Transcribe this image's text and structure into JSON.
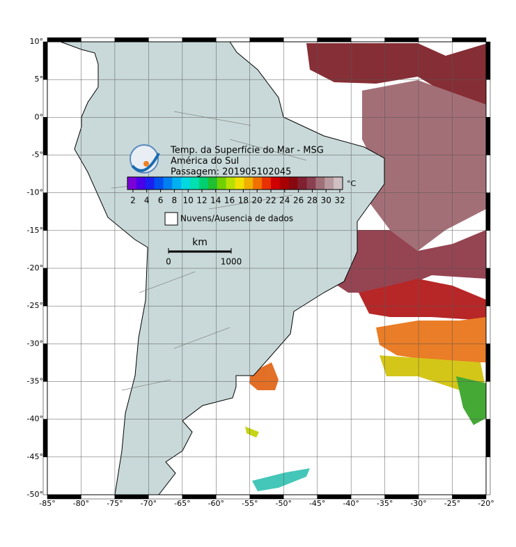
{
  "map": {
    "xlim": [
      -85,
      -20
    ],
    "ylim": [
      -50,
      10
    ],
    "grid": true,
    "xticks": [
      {
        "value": -85,
        "label": "-85°"
      },
      {
        "value": -80,
        "label": "-80°"
      },
      {
        "value": -75,
        "label": "-75°"
      },
      {
        "value": -70,
        "label": "-70°"
      },
      {
        "value": -65,
        "label": "-65°"
      },
      {
        "value": -60,
        "label": "-60°"
      },
      {
        "value": -55,
        "label": "-55°"
      },
      {
        "value": -50,
        "label": "-50°"
      },
      {
        "value": -45,
        "label": "-45°"
      },
      {
        "value": -40,
        "label": "-40°"
      },
      {
        "value": -35,
        "label": "-35°"
      },
      {
        "value": -30,
        "label": "-30°"
      },
      {
        "value": -25,
        "label": "-25°"
      },
      {
        "value": -20,
        "label": "-20°"
      }
    ],
    "yticks": [
      {
        "value": 10,
        "label": "10°"
      },
      {
        "value": 5,
        "label": "5°"
      },
      {
        "value": 0,
        "label": "0°"
      },
      {
        "value": -5,
        "label": "-5°"
      },
      {
        "value": -10,
        "label": "-10°"
      },
      {
        "value": -15,
        "label": "-15°"
      },
      {
        "value": -20,
        "label": "-20°"
      },
      {
        "value": -25,
        "label": "-25°"
      },
      {
        "value": -30,
        "label": "-30°"
      },
      {
        "value": -35,
        "label": "-35°"
      },
      {
        "value": -40,
        "label": "-40°"
      },
      {
        "value": -45,
        "label": "-45°"
      },
      {
        "value": -50,
        "label": "-50°"
      }
    ]
  },
  "legend": {
    "title_lines": [
      "Temp. da Superfície do Mar - MSG",
      "América do Sul",
      "Passagem: 201905102045"
    ],
    "colorbar": {
      "lim": [
        1.2,
        32.4
      ],
      "ticks": [
        2,
        4,
        6,
        8,
        10,
        12,
        14,
        16,
        18,
        20,
        22,
        24,
        26,
        28,
        30,
        32
      ],
      "unit": "°C",
      "colors": [
        "#7a00d8",
        "#4a00e8",
        "#1a20f0",
        "#0050f0",
        "#0080f0",
        "#00b0f0",
        "#00d8e0",
        "#00e0b0",
        "#00d070",
        "#20c030",
        "#70d000",
        "#b8e000",
        "#f0e000",
        "#f0b000",
        "#f07000",
        "#e83000",
        "#d00000",
        "#a80000",
        "#880810",
        "#802030",
        "#8a4050",
        "#a07078",
        "#b89aa0",
        "#cfc0c4"
      ]
    },
    "no_data": "Nuvens/Ausencia de dados",
    "scale": {
      "unit": "km",
      "ticks": [
        0,
        1000
      ]
    }
  }
}
